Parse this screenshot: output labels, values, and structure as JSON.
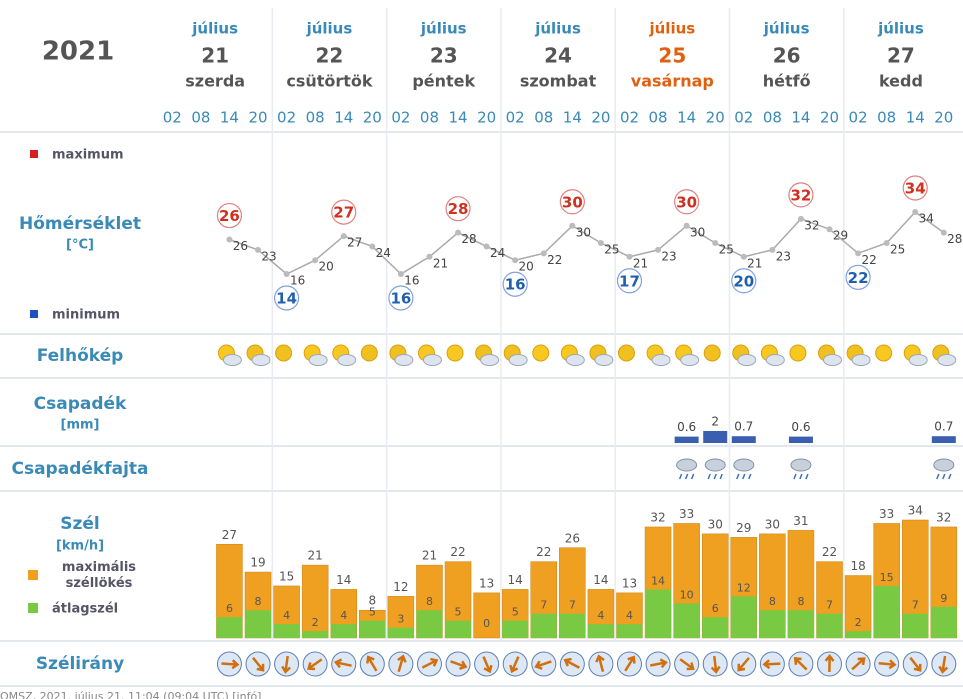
{
  "year": "2021",
  "days": [
    {
      "month": "július",
      "day": "21",
      "weekday": "szerda"
    },
    {
      "month": "július",
      "day": "22",
      "weekday": "csütörtök"
    },
    {
      "month": "július",
      "day": "23",
      "weekday": "péntek"
    },
    {
      "month": "július",
      "day": "24",
      "weekday": "szombat"
    },
    {
      "month": "július",
      "day": "25",
      "weekday": "vasárnap"
    },
    {
      "month": "július",
      "day": "26",
      "weekday": "hétfő"
    },
    {
      "month": "július",
      "day": "27",
      "weekday": "kedd"
    }
  ],
  "hours": [
    "02",
    "08",
    "14",
    "20"
  ],
  "labels": {
    "maximum": "maximum",
    "temperature": "Hőmérséklet",
    "temperature_unit": "[°C]",
    "minimum": "minimum",
    "clouds": "Felhőkép",
    "precip": "Csapadék",
    "precip_unit": "[mm]",
    "precip_type": "Csapadékfajta",
    "wind": "Szél",
    "wind_unit": "[km/h]",
    "gust": "maximális széllökés",
    "avg_wind": "átlagszél",
    "wind_dir": "Szélirány"
  },
  "temperature": [
    null,
    null,
    26,
    23,
    16,
    20,
    27,
    24,
    16,
    21,
    28,
    24,
    20,
    22,
    30,
    25,
    21,
    23,
    30,
    25,
    21,
    23,
    32,
    29,
    22,
    25,
    34,
    28
  ],
  "daily_max": [
    26,
    27,
    28,
    30,
    30,
    32,
    34
  ],
  "daily_min": [
    14,
    16,
    16,
    17,
    20,
    22
  ],
  "precipitation": [
    null,
    null,
    null,
    null,
    null,
    null,
    null,
    null,
    null,
    null,
    null,
    null,
    null,
    null,
    null,
    null,
    null,
    null,
    0.6,
    2,
    0.7,
    null,
    0.6,
    null,
    null,
    null,
    null,
    0.7
  ],
  "wind_gust": [
    null,
    null,
    27,
    19,
    15,
    21,
    14,
    8,
    12,
    21,
    22,
    13,
    14,
    22,
    26,
    14,
    13,
    32,
    33,
    30,
    29,
    30,
    31,
    22,
    18,
    33,
    34,
    32
  ],
  "wind_avg": [
    null,
    null,
    6,
    8,
    4,
    2,
    4,
    5,
    3,
    8,
    5,
    0,
    5,
    7,
    7,
    4,
    4,
    14,
    10,
    6,
    12,
    8,
    8,
    7,
    2,
    15,
    7,
    9
  ],
  "footer": "OMSZ, 2021. július 21. 11:04 (09:04 UTC) [infó]"
}
